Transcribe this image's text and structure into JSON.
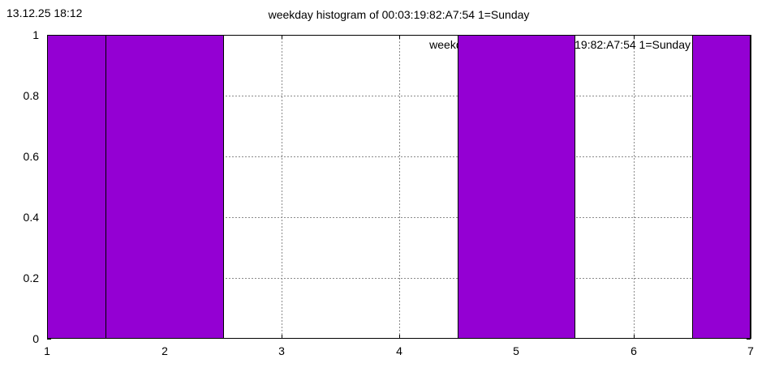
{
  "header": {
    "timestamp": "13.12.25 18:12",
    "title": "weekday histogram of 00:03:19:82:A7:54 1=Sunday"
  },
  "chart_data": {
    "type": "bar",
    "title": "weekday histogram of 00:03:19:82:A7:54 1=Sunday",
    "categories": [
      1,
      2,
      3,
      4,
      5,
      6,
      7
    ],
    "values": [
      1,
      1,
      0,
      0,
      1,
      0,
      1
    ],
    "bar_width": 1,
    "xlabel": "",
    "ylabel": "",
    "xlim": [
      1,
      7
    ],
    "ylim": [
      0,
      1
    ],
    "xticks": [
      1,
      2,
      3,
      4,
      5,
      6,
      7
    ],
    "xtick_labels": [
      "1",
      "2",
      "3",
      "4",
      "5",
      "6",
      "7"
    ],
    "yticks": [
      0,
      0.2,
      0.4,
      0.6,
      0.8,
      1
    ],
    "ytick_labels": [
      "0",
      "0.2",
      "0.4",
      "0.6",
      "0.8",
      "1"
    ],
    "grid": true,
    "legend": {
      "text": "weekday histogram of 00:03:19:82:A7:54 1=Sunday",
      "position": "top-right-inside"
    },
    "colors": {
      "bar_fill": "#9400d3",
      "bar_border": "#000000",
      "grid": "#8a8a8a",
      "axis": "#000000",
      "text": "#000000",
      "background": "#ffffff"
    }
  }
}
